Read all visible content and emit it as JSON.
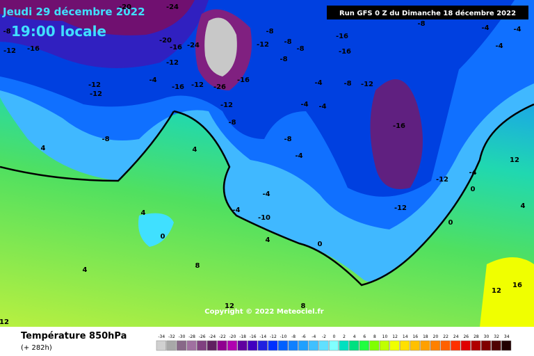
{
  "header": {
    "date": "Jeudi 29 décembre 2022",
    "time": "19:00 locale",
    "run": "Run GFS 0 Z du Dimanche 18 décembre 2022",
    "copyright": "Copyright © 2022 Meteociel.fr"
  },
  "footer": {
    "title": "Température 850hPa",
    "lead": "(+ 282h)"
  },
  "legend": {
    "values": [
      -34,
      -32,
      -30,
      -28,
      -26,
      -24,
      -22,
      -20,
      -18,
      -16,
      -14,
      -12,
      -10,
      -8,
      -6,
      -4,
      -2,
      0,
      2,
      4,
      6,
      8,
      10,
      12,
      14,
      16,
      18,
      20,
      22,
      24,
      26,
      28,
      30,
      32,
      34
    ],
    "colors": [
      "#d0d0d0",
      "#a8a8a8",
      "#886888",
      "#a070a0",
      "#804080",
      "#602060",
      "#900090",
      "#b000b0",
      "#6000a0",
      "#4000c0",
      "#2020e0",
      "#0030ff",
      "#0060ff",
      "#1080ff",
      "#20a0ff",
      "#40c0ff",
      "#60e0ff",
      "#80ffff",
      "#00e0c0",
      "#00e080",
      "#20ff40",
      "#80ff00",
      "#c0ff00",
      "#f0ff00",
      "#ffe000",
      "#ffc000",
      "#ffa000",
      "#ff8000",
      "#ff6000",
      "#ff3000",
      "#e00000",
      "#b00000",
      "#800000",
      "#500000",
      "#200000"
    ]
  },
  "map": {
    "labels": [
      "-20",
      "-24",
      "-8",
      "-12",
      "-16",
      "-20",
      "-16",
      "-24",
      "-12",
      "-16",
      "-26",
      "-12",
      "-4",
      "-12",
      "-12",
      "-16",
      "-8",
      "-12",
      "-8",
      "-8",
      "-8",
      "-16",
      "-16",
      "-8",
      "-4",
      "-4",
      "-4",
      "-8",
      "-12",
      "-16",
      "-12",
      "-12",
      "-4",
      "-4",
      "-4",
      "-8",
      "-4",
      "-8",
      "-12",
      "4",
      "4",
      "4",
      "0",
      "4",
      "8",
      "12",
      "12",
      "16",
      "-8",
      "-4",
      "-4",
      "-10",
      "0",
      "4",
      "8",
      "12",
      "-4",
      "0",
      "0",
      "12",
      "4"
    ]
  }
}
